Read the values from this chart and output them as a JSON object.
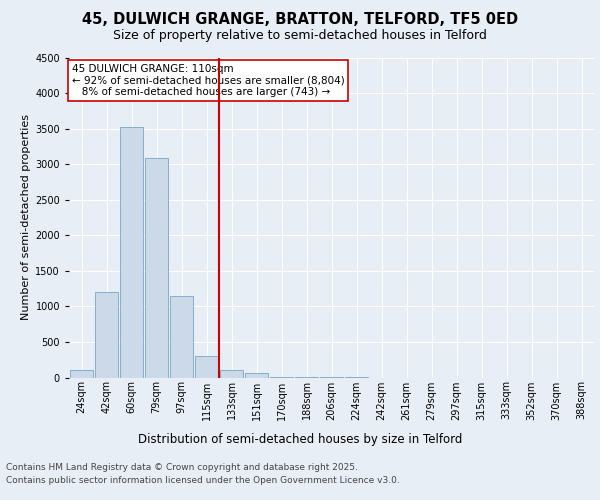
{
  "title1": "45, DULWICH GRANGE, BRATTON, TELFORD, TF5 0ED",
  "title2": "Size of property relative to semi-detached houses in Telford",
  "xlabel": "Distribution of semi-detached houses by size in Telford",
  "ylabel": "Number of semi-detached properties",
  "categories": [
    "24sqm",
    "42sqm",
    "60sqm",
    "79sqm",
    "97sqm",
    "115sqm",
    "133sqm",
    "151sqm",
    "170sqm",
    "188sqm",
    "206sqm",
    "224sqm",
    "242sqm",
    "261sqm",
    "279sqm",
    "297sqm",
    "315sqm",
    "333sqm",
    "352sqm",
    "370sqm",
    "388sqm"
  ],
  "values": [
    105,
    1200,
    3520,
    3090,
    1150,
    300,
    105,
    60,
    10,
    5,
    2,
    1,
    0,
    0,
    0,
    0,
    0,
    0,
    0,
    0,
    0
  ],
  "bar_color": "#ccd9e8",
  "bar_edge_color": "#6699bb",
  "vline_x": 5.5,
  "vline_color": "#cc0000",
  "annotation_text": "45 DULWICH GRANGE: 110sqm\n← 92% of semi-detached houses are smaller (8,804)\n   8% of semi-detached houses are larger (743) →",
  "annotation_box_color": "#ffffff",
  "annotation_box_edge": "#cc0000",
  "ylim": [
    0,
    4500
  ],
  "yticks": [
    0,
    500,
    1000,
    1500,
    2000,
    2500,
    3000,
    3500,
    4000,
    4500
  ],
  "bg_color": "#e8eef5",
  "plot_bg_color": "#e8eef5",
  "footer1": "Contains HM Land Registry data © Crown copyright and database right 2025.",
  "footer2": "Contains public sector information licensed under the Open Government Licence v3.0.",
  "title1_fontsize": 10.5,
  "title2_fontsize": 9,
  "xlabel_fontsize": 8.5,
  "ylabel_fontsize": 8,
  "tick_fontsize": 7,
  "annotation_fontsize": 7.5,
  "footer_fontsize": 6.5
}
